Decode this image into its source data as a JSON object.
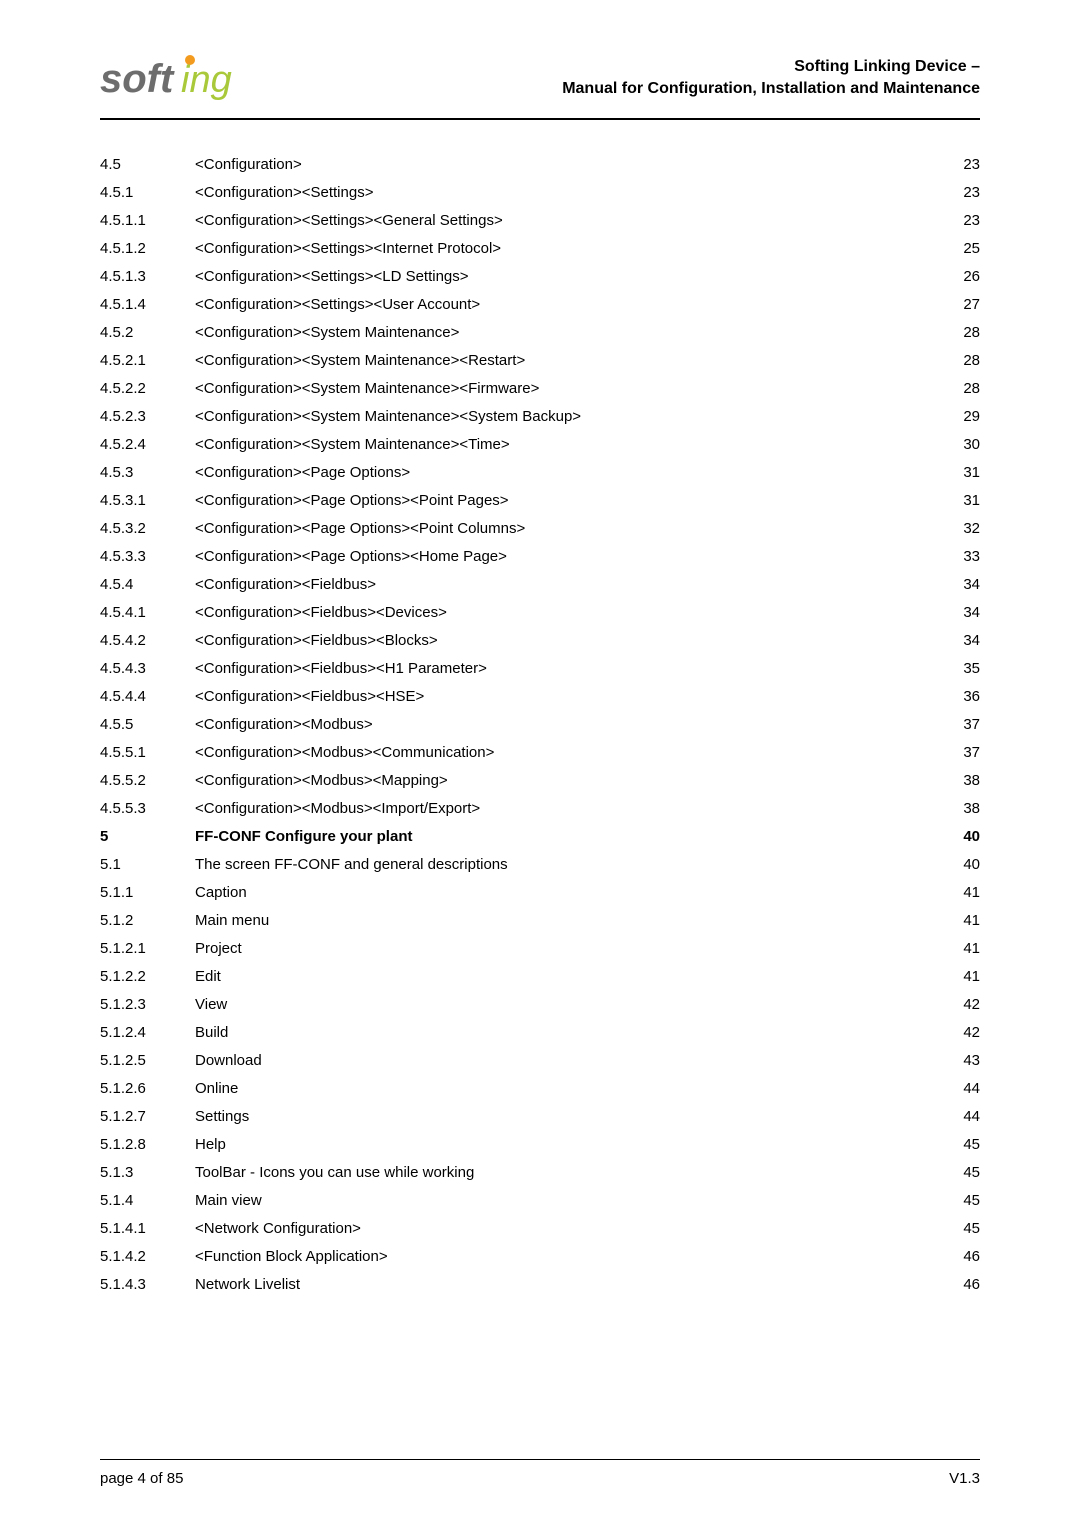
{
  "header": {
    "title_line1": "Softing Linking Device –",
    "title_line2": "Manual for Configuration, Installation and Maintenance"
  },
  "logo": {
    "text_main": "soft",
    "text_accent": "ing",
    "main_color": "#6d6d6d",
    "accent_color": "#a9c93a",
    "i_dot_color": "#f39b1e"
  },
  "toc": [
    {
      "num": "4.5",
      "title": "<Configuration>",
      "page": "23",
      "bold": false
    },
    {
      "num": "4.5.1",
      "title": "<Configuration><Settings>",
      "page": "23",
      "bold": false
    },
    {
      "num": "4.5.1.1",
      "title": "<Configuration><Settings><General Settings>",
      "page": "23",
      "bold": false
    },
    {
      "num": "4.5.1.2",
      "title": "<Configuration><Settings><Internet Protocol>",
      "page": "25",
      "bold": false
    },
    {
      "num": "4.5.1.3",
      "title": "<Configuration><Settings><LD Settings>",
      "page": "26",
      "bold": false
    },
    {
      "num": "4.5.1.4",
      "title": "<Configuration><Settings><User Account>",
      "page": "27",
      "bold": false
    },
    {
      "num": "4.5.2",
      "title": "<Configuration><System Maintenance>",
      "page": "28",
      "bold": false
    },
    {
      "num": "4.5.2.1",
      "title": "<Configuration><System Maintenance><Restart>",
      "page": "28",
      "bold": false
    },
    {
      "num": "4.5.2.2",
      "title": "<Configuration><System Maintenance><Firmware>",
      "page": "28",
      "bold": false
    },
    {
      "num": "4.5.2.3",
      "title": "<Configuration><System Maintenance><System Backup>",
      "page": "29",
      "bold": false
    },
    {
      "num": "4.5.2.4",
      "title": "<Configuration><System Maintenance><Time>",
      "page": "30",
      "bold": false
    },
    {
      "num": "4.5.3",
      "title": "<Configuration><Page Options>",
      "page": "31",
      "bold": false
    },
    {
      "num": "4.5.3.1",
      "title": "<Configuration><Page Options><Point Pages>",
      "page": "31",
      "bold": false
    },
    {
      "num": "4.5.3.2",
      "title": "<Configuration><Page Options><Point Columns>",
      "page": "32",
      "bold": false
    },
    {
      "num": "4.5.3.3",
      "title": "<Configuration><Page Options><Home Page>",
      "page": "33",
      "bold": false
    },
    {
      "num": "4.5.4",
      "title": "<Configuration><Fieldbus>",
      "page": "34",
      "bold": false
    },
    {
      "num": "4.5.4.1",
      "title": "<Configuration><Fieldbus><Devices>",
      "page": "34",
      "bold": false
    },
    {
      "num": "4.5.4.2",
      "title": "<Configuration><Fieldbus><Blocks>",
      "page": "34",
      "bold": false
    },
    {
      "num": "4.5.4.3",
      "title": "<Configuration><Fieldbus><H1 Parameter>",
      "page": "35",
      "bold": false
    },
    {
      "num": "4.5.4.4",
      "title": "<Configuration><Fieldbus><HSE>",
      "page": "36",
      "bold": false
    },
    {
      "num": "4.5.5",
      "title": "<Configuration><Modbus>",
      "page": "37",
      "bold": false
    },
    {
      "num": "4.5.5.1",
      "title": "<Configuration><Modbus><Communication>",
      "page": "37",
      "bold": false
    },
    {
      "num": "4.5.5.2",
      "title": "<Configuration><Modbus><Mapping>",
      "page": "38",
      "bold": false
    },
    {
      "num": "4.5.5.3",
      "title": "<Configuration><Modbus><Import/Export>",
      "page": "38",
      "bold": false
    },
    {
      "num": "5",
      "title": "FF-CONF Configure your plant",
      "page": "40",
      "bold": true
    },
    {
      "num": "5.1",
      "title": "The screen FF-CONF and general descriptions",
      "page": "40",
      "bold": false
    },
    {
      "num": "5.1.1",
      "title": "Caption",
      "page": "41",
      "bold": false
    },
    {
      "num": "5.1.2",
      "title": "Main menu",
      "page": "41",
      "bold": false
    },
    {
      "num": "5.1.2.1",
      "title": "Project",
      "page": "41",
      "bold": false
    },
    {
      "num": "5.1.2.2",
      "title": "Edit",
      "page": "41",
      "bold": false
    },
    {
      "num": "5.1.2.3",
      "title": "View",
      "page": "42",
      "bold": false
    },
    {
      "num": "5.1.2.4",
      "title": "Build",
      "page": "42",
      "bold": false
    },
    {
      "num": "5.1.2.5",
      "title": "Download",
      "page": "43",
      "bold": false
    },
    {
      "num": "5.1.2.6",
      "title": "Online",
      "page": "44",
      "bold": false
    },
    {
      "num": "5.1.2.7",
      "title": "Settings",
      "page": "44",
      "bold": false
    },
    {
      "num": "5.1.2.8",
      "title": "Help",
      "page": "45",
      "bold": false
    },
    {
      "num": "5.1.3",
      "title": "ToolBar - Icons you can use while working",
      "page": "45",
      "bold": false
    },
    {
      "num": "5.1.4",
      "title": "Main view",
      "page": "45",
      "bold": false
    },
    {
      "num": "5.1.4.1",
      "title": "<Network Configuration>",
      "page": "45",
      "bold": false
    },
    {
      "num": "5.1.4.2",
      "title": "<Function Block Application>",
      "page": "46",
      "bold": false
    },
    {
      "num": "5.1.4.3",
      "title": "Network Livelist",
      "page": "46",
      "bold": false
    }
  ],
  "footer": {
    "left": "page 4 of 85",
    "right": "V1.3"
  }
}
